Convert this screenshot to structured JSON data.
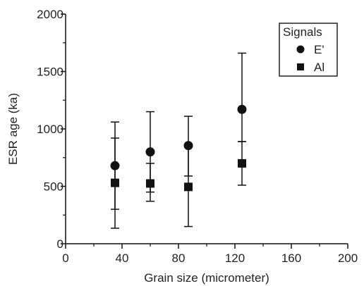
{
  "chart_data": {
    "type": "scatter",
    "xlabel": "Grain size (micrometer)",
    "ylabel": "ESR age (ka)",
    "xlim": [
      0,
      200
    ],
    "ylim": [
      0,
      2000
    ],
    "xticks": [
      0,
      40,
      80,
      120,
      160,
      200
    ],
    "yticks": [
      0,
      500,
      1000,
      1500,
      2000
    ],
    "x_tick_labels": [
      "0",
      "40",
      "80",
      "120",
      "160",
      "200"
    ],
    "y_tick_labels": [
      "0",
      "500",
      "1000",
      "1500",
      "2000"
    ],
    "grid": false,
    "legend": {
      "title": "Signals",
      "placement": "top-right",
      "entries": [
        "E'",
        "Al"
      ]
    },
    "series": [
      {
        "name": "E'",
        "marker": "circle",
        "x": [
          35,
          60,
          87,
          125
        ],
        "y": [
          680,
          800,
          855,
          1170
        ],
        "yerr_low": [
          300,
          450,
          590,
          890
        ],
        "yerr_high": [
          1060,
          1150,
          1110,
          1660
        ]
      },
      {
        "name": "Al",
        "marker": "square",
        "x": [
          35,
          60,
          87,
          125
        ],
        "y": [
          530,
          525,
          495,
          700
        ],
        "yerr_low": [
          135,
          370,
          150,
          510
        ],
        "yerr_high": [
          920,
          700,
          840,
          890
        ]
      }
    ]
  }
}
